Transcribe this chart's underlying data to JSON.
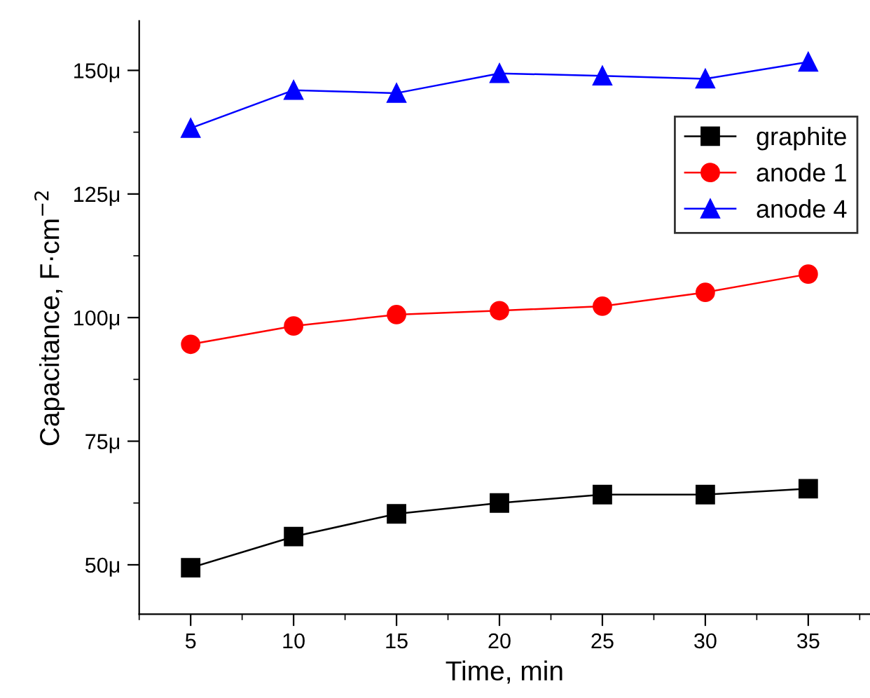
{
  "chart_data": {
    "type": "line",
    "xlabel": "Time, min",
    "ylabel": "Capacitance, F·cm$^{−2}$",
    "x": [
      5,
      10,
      15,
      20,
      25,
      30,
      35
    ],
    "series": [
      {
        "name": "graphite",
        "color": "#000000",
        "marker": "square",
        "values": [
          49.4,
          55.7,
          60.3,
          62.5,
          64.2,
          64.2,
          65.4
        ]
      },
      {
        "name": "anode 1",
        "color": "#ff0000",
        "marker": "circle",
        "values": [
          94.6,
          98.3,
          100.6,
          101.4,
          102.3,
          105.1,
          108.8
        ]
      },
      {
        "name": "anode 4",
        "color": "#0000ff",
        "marker": "triangle",
        "values": [
          138.3,
          146.0,
          145.4,
          149.4,
          148.9,
          148.3,
          151.7
        ]
      }
    ],
    "xlim": [
      2.5,
      38
    ],
    "ylim": [
      40,
      160
    ],
    "xticks": [
      5,
      10,
      15,
      20,
      25,
      30,
      35
    ],
    "yticks": [
      {
        "value": 50,
        "label": "50μ"
      },
      {
        "value": 75,
        "label": "75μ"
      },
      {
        "value": 100,
        "label": "100μ"
      },
      {
        "value": 125,
        "label": "125μ"
      },
      {
        "value": 150,
        "label": "150μ"
      }
    ],
    "legend": "top right",
    "grid": false,
    "line_style": "solid"
  }
}
